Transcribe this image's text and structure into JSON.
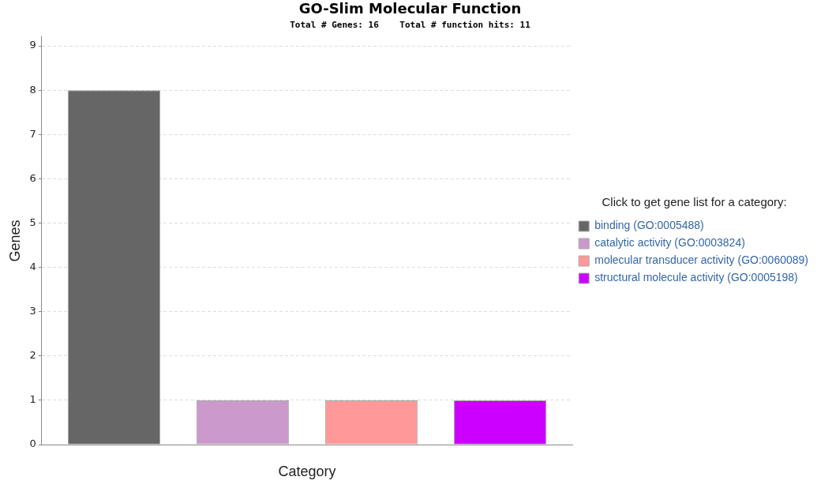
{
  "chart_data": {
    "type": "bar",
    "title": "GO-Slim Molecular Function",
    "subtitle": "Total # Genes: 16    Total # function hits: 11",
    "xlabel": "Category",
    "ylabel": "Genes",
    "legend_title": "Click to get gene list for a category:",
    "categories": [
      null
    ],
    "series": [
      {
        "name": "binding (GO:0005488)",
        "color": "#666666",
        "values": [
          8
        ]
      },
      {
        "name": "catalytic activity (GO:0003824)",
        "color": "#cc99cc",
        "values": [
          1
        ]
      },
      {
        "name": "molecular transducer activity (GO:0060089)",
        "color": "#ff9999",
        "values": [
          1
        ]
      },
      {
        "name": "structural molecule activity (GO:0005198)",
        "color": "#cc00ff",
        "values": [
          1
        ]
      }
    ],
    "ylim": [
      0,
      9.2
    ],
    "yticks": [
      0,
      1,
      2,
      3,
      4,
      5,
      6,
      7,
      8,
      9
    ],
    "grid": "y",
    "legend": "right"
  }
}
